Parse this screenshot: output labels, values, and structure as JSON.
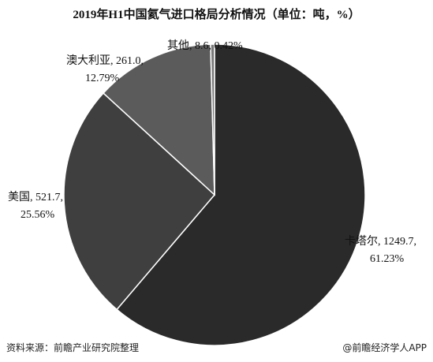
{
  "chart_data": {
    "type": "pie",
    "title": "2019年H1中国氦气进口格局分析情况（单位：吨，%）",
    "categories": [
      "卡塔尔",
      "美国",
      "澳大利亚",
      "其他"
    ],
    "values": [
      1249.7,
      521.7,
      261.0,
      8.6
    ],
    "value_labels": [
      "1249.7",
      "521.7",
      "261.0",
      "8.6"
    ],
    "percents": [
      61.23,
      25.56,
      12.79,
      0.42
    ],
    "percent_labels": [
      "61.23%",
      "25.56%",
      "12.79%",
      "0.42%"
    ],
    "colors": [
      "#2a2a2a",
      "#3f3f3f",
      "#5b5b5b",
      "#7a7a7a"
    ],
    "source": "资料来源：前瞻产业研究院整理",
    "credit": "@前瞻经济学人APP"
  }
}
